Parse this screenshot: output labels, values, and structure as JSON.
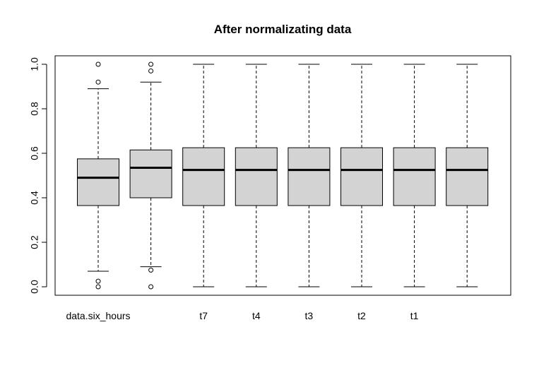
{
  "chart_data": {
    "type": "boxplot",
    "title": "After normalizating data",
    "xlabel": "",
    "ylabel": "",
    "ylim": [
      0,
      1
    ],
    "y_ticks": [
      "0.0",
      "0.2",
      "0.4",
      "0.6",
      "0.8",
      "1.0"
    ],
    "categories": [
      "data.six_hours",
      "",
      "t7",
      "t4",
      "t3",
      "t2",
      "t1",
      ""
    ],
    "box_fill": "#d3d3d3",
    "grid": false,
    "boxes": [
      {
        "whisker_low": 0.07,
        "q1": 0.365,
        "median": 0.49,
        "q3": 0.575,
        "whisker_high": 0.89,
        "outliers": [
          0.0,
          0.025,
          0.92,
          1.0
        ]
      },
      {
        "whisker_low": 0.09,
        "q1": 0.4,
        "median": 0.535,
        "q3": 0.615,
        "whisker_high": 0.92,
        "outliers": [
          0.0,
          0.075,
          0.97,
          1.0
        ]
      },
      {
        "whisker_low": 0.0,
        "q1": 0.365,
        "median": 0.525,
        "q3": 0.625,
        "whisker_high": 1.0,
        "outliers": []
      },
      {
        "whisker_low": 0.0,
        "q1": 0.365,
        "median": 0.525,
        "q3": 0.625,
        "whisker_high": 1.0,
        "outliers": []
      },
      {
        "whisker_low": 0.0,
        "q1": 0.365,
        "median": 0.525,
        "q3": 0.625,
        "whisker_high": 1.0,
        "outliers": []
      },
      {
        "whisker_low": 0.0,
        "q1": 0.365,
        "median": 0.525,
        "q3": 0.625,
        "whisker_high": 1.0,
        "outliers": []
      },
      {
        "whisker_low": 0.0,
        "q1": 0.365,
        "median": 0.525,
        "q3": 0.625,
        "whisker_high": 1.0,
        "outliers": []
      },
      {
        "whisker_low": 0.0,
        "q1": 0.365,
        "median": 0.525,
        "q3": 0.625,
        "whisker_high": 1.0,
        "outliers": []
      }
    ]
  }
}
